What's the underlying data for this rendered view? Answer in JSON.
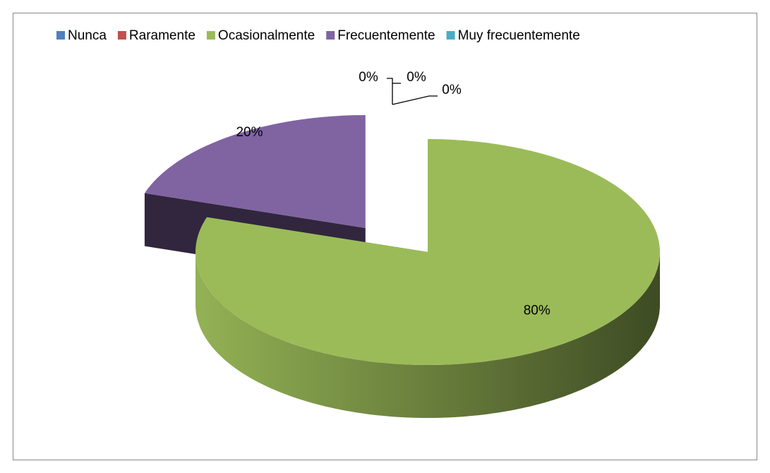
{
  "chart_data": {
    "type": "pie3d",
    "categories": [
      "Nunca",
      "Raramente",
      "Ocasionalmente",
      "Frecuentemente",
      "Muy frecuentemente"
    ],
    "values": [
      0,
      0,
      80,
      20,
      0
    ],
    "value_labels": [
      "0%",
      "0%",
      "80%",
      "20%",
      "0%"
    ],
    "colors": [
      "#4f81bd",
      "#c0504d",
      "#9bbb59",
      "#8064a2",
      "#4bacc6"
    ],
    "legend": "top"
  }
}
